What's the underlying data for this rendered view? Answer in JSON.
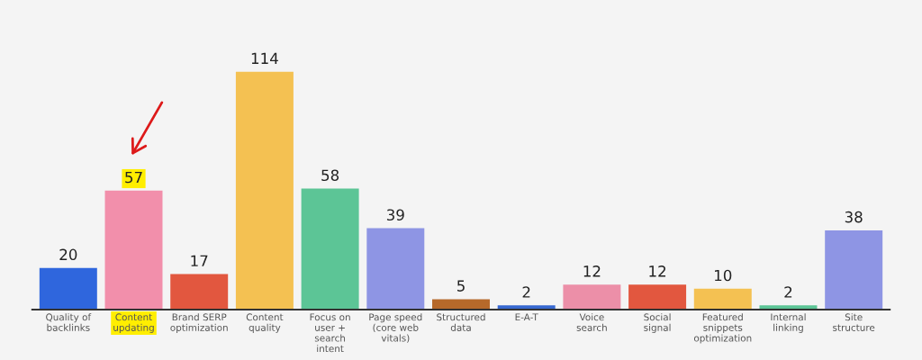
{
  "chart_data": {
    "type": "bar",
    "categories": [
      "Quality of backlinks",
      "Content updating",
      "Brand SERP optimization",
      "Content quality",
      "Focus on user + search intent",
      "Page speed (core web vitals)",
      "Structured data",
      "E-A-T",
      "Voice search",
      "Social signal",
      "Featured snippets optimization",
      "Internal linking",
      "Site structure"
    ],
    "values": [
      20,
      57,
      17,
      114,
      58,
      39,
      5,
      2,
      12,
      12,
      10,
      2,
      38
    ],
    "colors": [
      "#2f66dd",
      "#f28fab",
      "#e2573f",
      "#f4c152",
      "#5cc596",
      "#8e95e4",
      "#b6692a",
      "#3768d0",
      "#ec8fa8",
      "#e2573f",
      "#f4c152",
      "#5cc596",
      "#8e95e4"
    ],
    "data_labels": true,
    "grid": false
  }
}
